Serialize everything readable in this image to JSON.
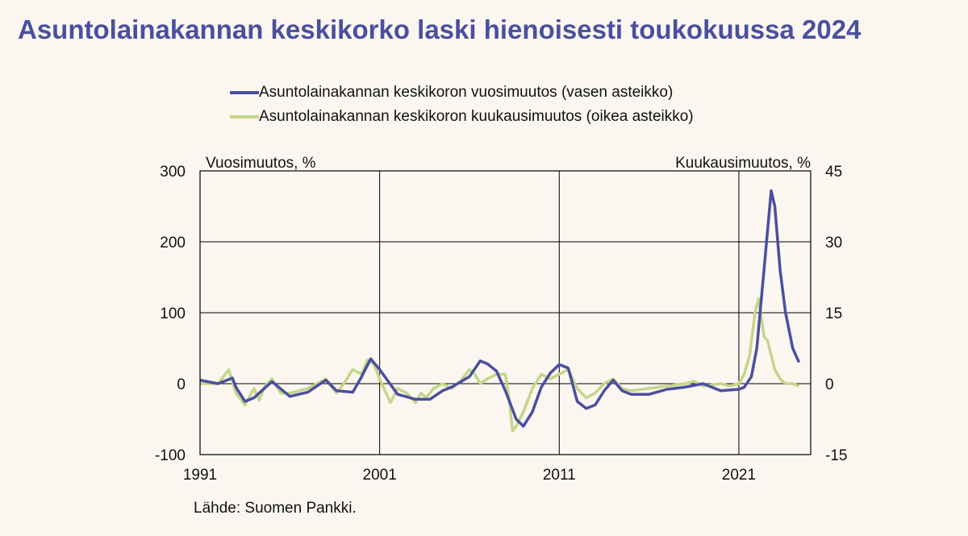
{
  "title": "Asuntolainakannan keskikorko laski hienoisesti toukokuussa 2024",
  "source": "Lähde: Suomen Pankki.",
  "colors": {
    "series1": "#4b4fa0",
    "series2": "#c4d68a",
    "background": "#fbf7f0"
  },
  "chart_data": {
    "type": "line",
    "title": "Asuntolainakannan keskikorko laski hienoisesti toukokuussa 2024",
    "y_left_label": "Vuosimuutos, %",
    "y_right_label": "Kuukausimuutos, %",
    "y_left_range": [
      -100,
      300
    ],
    "y_right_range": [
      -15,
      45
    ],
    "y_left_ticks": [
      "300",
      "200",
      "100",
      "0",
      "-100"
    ],
    "y_right_ticks": [
      "45",
      "30",
      "15",
      "0",
      "-15"
    ],
    "x_range": [
      1991,
      2025
    ],
    "x_ticks": [
      "1991",
      "2001",
      "2011",
      "2021"
    ],
    "grid": true,
    "legend_position": "top",
    "series": [
      {
        "name": "Asuntolainakannan keskikoron vuosimuutos (vasen asteikko)",
        "axis": "left",
        "x": [
          1991,
          1992,
          1992.8,
          1993,
          1993.5,
          1994,
          1995,
          1996,
          1997,
          1998,
          1998.6,
          1999.5,
          2000,
          2000.5,
          2001,
          2002,
          2003,
          2003.8,
          2004.5,
          2005,
          2006,
          2006.6,
          2007,
          2007.5,
          2008,
          2008.6,
          2009,
          2009.5,
          2010,
          2010.5,
          2011,
          2011.5,
          2012,
          2012.5,
          2013,
          2013.5,
          2014,
          2014.5,
          2015,
          2016,
          2017,
          2018,
          2019,
          2020,
          2021,
          2021.3,
          2021.7,
          2022,
          2022.4,
          2022.8,
          2023,
          2023.3,
          2023.6,
          2024,
          2024.35
        ],
        "y": [
          5,
          0,
          8,
          -5,
          -25,
          -20,
          3,
          -18,
          -12,
          5,
          -10,
          -12,
          10,
          35,
          20,
          -15,
          -22,
          -22,
          -10,
          -5,
          10,
          32,
          28,
          18,
          -10,
          -50,
          -60,
          -40,
          -5,
          15,
          27,
          22,
          -25,
          -35,
          -30,
          -10,
          5,
          -10,
          -15,
          -15,
          -8,
          -5,
          0,
          -10,
          -8,
          -5,
          10,
          50,
          160,
          272,
          250,
          160,
          100,
          50,
          30
        ]
      },
      {
        "name": "Asuntolainakannan keskikoron kuukausimuutos (oikea asteikko)",
        "axis": "right",
        "x": [
          1991,
          1992,
          1992.6,
          1992.8,
          1993,
          1993.5,
          1994,
          1994.3,
          1994.6,
          1995,
          1995.5,
          1996,
          1996.5,
          1997,
          1997.5,
          1998,
          1998.3,
          1998.6,
          1999,
          1999.5,
          2000,
          2000.3,
          2000.7,
          2001,
          2001.3,
          2001.6,
          2002,
          2002.5,
          2003,
          2003.3,
          2003.6,
          2004,
          2004.5,
          2005,
          2005.5,
          2006,
          2006.3,
          2006.6,
          2007,
          2007.5,
          2008,
          2008.2,
          2008.4,
          2008.6,
          2009,
          2009.5,
          2010,
          2010.5,
          2011,
          2011.5,
          2012,
          2012.5,
          2013,
          2013.5,
          2014,
          2014.5,
          2015,
          2016,
          2017,
          2018,
          2018.5,
          2019,
          2020,
          2020.5,
          2021,
          2021.3,
          2021.6,
          2021.9,
          2022.1,
          2022.4,
          2022.6,
          2022.8,
          2023,
          2023.3,
          2023.6,
          2024,
          2024.35
        ],
        "y": [
          0,
          0,
          3,
          0.5,
          -2,
          -4.5,
          -1,
          -3.5,
          -0.5,
          1,
          -2,
          -2,
          -1.5,
          -1,
          0,
          1,
          -0.5,
          -2,
          0,
          3,
          2,
          5,
          4,
          1,
          -1.5,
          -4,
          -1,
          -2,
          -4,
          -2,
          -3,
          -1,
          0,
          -1,
          0.5,
          3,
          2,
          0,
          1,
          2,
          2,
          -3,
          -10,
          -9,
          -6,
          -1,
          2,
          1,
          2,
          3,
          -1,
          -3,
          -2,
          0,
          1,
          -1,
          -1.5,
          -1,
          -0.5,
          0,
          0.5,
          -0.5,
          0,
          -0.5,
          0,
          2,
          6,
          15,
          18,
          10,
          9,
          6,
          3,
          1,
          0,
          0,
          -0.5
        ]
      }
    ]
  }
}
